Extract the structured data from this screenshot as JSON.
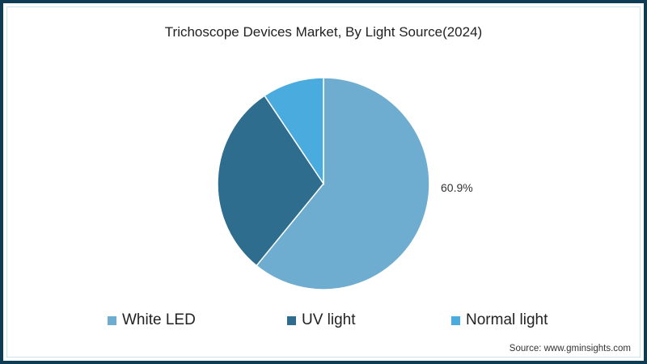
{
  "chart_data": {
    "type": "pie",
    "title": "Trichoscope Devices Market, By Light Source(2024)",
    "categories": [
      "White LED",
      "UV light",
      "Normal light"
    ],
    "values": [
      60.9,
      29.7,
      9.4
    ],
    "colors": [
      "#6eacd0",
      "#2e6d8e",
      "#4aabde"
    ],
    "data_labels": [
      "60.9%",
      "",
      ""
    ],
    "start_angle": "12 o'clock, clockwise",
    "legend_position": "bottom"
  },
  "title": "Trichoscope Devices Market, By Light Source(2024)",
  "label": {
    "white_led": "60.9%"
  },
  "legend": [
    {
      "label": "White LED",
      "color": "#6eacd0"
    },
    {
      "label": "UV light",
      "color": "#2e6d8e"
    },
    {
      "label": "Normal light",
      "color": "#4aabde"
    }
  ],
  "source": "Source: www.gminsights.com",
  "colors": {
    "border": "#0f3c55"
  }
}
